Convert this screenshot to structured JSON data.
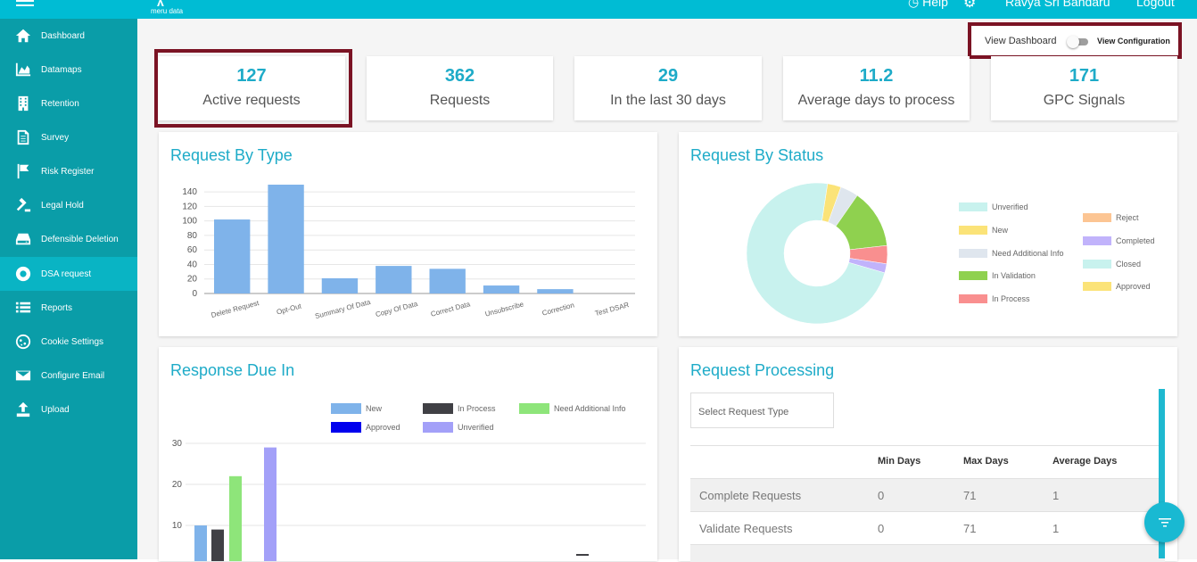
{
  "header": {
    "logo_text": "meru data",
    "help_label": "Help",
    "user_name": "Ravya Sri Bandaru",
    "logout_label": "Logout"
  },
  "sidebar": {
    "items": [
      {
        "label": "Dashboard",
        "icon": "home-icon"
      },
      {
        "label": "Datamaps",
        "icon": "area-chart-icon"
      },
      {
        "label": "Retention",
        "icon": "building-icon"
      },
      {
        "label": "Survey",
        "icon": "document-icon"
      },
      {
        "label": "Risk Register",
        "icon": "flag-icon"
      },
      {
        "label": "Legal Hold",
        "icon": "gavel-icon"
      },
      {
        "label": "Defensible Deletion",
        "icon": "drive-icon"
      },
      {
        "label": "DSA request",
        "icon": "lifebuoy-icon"
      },
      {
        "label": "Reports",
        "icon": "list-icon"
      },
      {
        "label": "Cookie Settings",
        "icon": "cookie-icon"
      },
      {
        "label": "Configure Email",
        "icon": "envelope-icon"
      },
      {
        "label": "Upload",
        "icon": "upload-icon"
      }
    ],
    "active_index": 7
  },
  "toggle": {
    "left_label": "View Dashboard",
    "right_label": "View Configuration",
    "state": "off"
  },
  "stats": [
    {
      "value": "127",
      "label": "Active requests"
    },
    {
      "value": "362",
      "label": "Requests"
    },
    {
      "value": "29",
      "label": "In the last 30 days"
    },
    {
      "value": "11.2",
      "label": "Average days to process"
    },
    {
      "value": "171",
      "label": "GPC Signals"
    }
  ],
  "panels": {
    "request_by_type": "Request By Type",
    "request_by_status": "Request By Status",
    "response_due_in": "Response Due In",
    "request_processing": "Request Processing"
  },
  "chart_data": [
    {
      "type": "bar",
      "title": "Request By Type",
      "categories": [
        "Delete Request",
        "Opt-Out",
        "Summary Of Data",
        "Copy Of Data",
        "Correct Data",
        "Unsubscribe",
        "Correction",
        "Test DSAR"
      ],
      "values": [
        102,
        150,
        21,
        38,
        34,
        11,
        6,
        0
      ],
      "ylim": [
        0,
        150
      ],
      "yticks": [
        0,
        20,
        40,
        60,
        80,
        100,
        120,
        140
      ],
      "color": "#7fb3ea"
    },
    {
      "type": "pie",
      "title": "Request By Status",
      "series": [
        {
          "name": "Unverified",
          "value": 70,
          "color": "#c8f2ee"
        },
        {
          "name": "New",
          "value": 3,
          "color": "#fbe378"
        },
        {
          "name": "Need Additional Info",
          "value": 4,
          "color": "#dfe6ee"
        },
        {
          "name": "In Validation",
          "value": 13,
          "color": "#8fd14f"
        },
        {
          "name": "In Process",
          "value": 4,
          "color": "#f98f8f"
        },
        {
          "name": "Reject",
          "value": 0,
          "color": "#fcc593"
        },
        {
          "name": "Completed",
          "value": 2,
          "color": "#c1b3fb"
        },
        {
          "name": "Closed",
          "value": 0,
          "color": "#c8f2ee"
        },
        {
          "name": "Approved",
          "value": 0,
          "color": "#fbe378"
        }
      ]
    },
    {
      "type": "bar",
      "title": "Response Due In",
      "series": [
        {
          "name": "New",
          "color": "#7fb3ea",
          "values": [
            10
          ]
        },
        {
          "name": "In Process",
          "color": "#404045",
          "values": [
            9
          ]
        },
        {
          "name": "Need Additional Info",
          "color": "#8ee57a",
          "values": [
            22
          ]
        },
        {
          "name": "Approved",
          "color": "#0000ee",
          "values": [
            0
          ]
        },
        {
          "name": "Unverified",
          "color": "#a3a0f8",
          "values": [
            29
          ]
        }
      ],
      "yticks": [
        10,
        20,
        30
      ]
    }
  ],
  "processing": {
    "select_placeholder": "Select Request Type",
    "columns": [
      "",
      "Min Days",
      "Max Days",
      "Average Days"
    ],
    "rows": [
      {
        "label": "Complete Requests",
        "min": "0",
        "max": "71",
        "avg": "1"
      },
      {
        "label": "Validate Requests",
        "min": "0",
        "max": "71",
        "avg": "1"
      }
    ]
  }
}
